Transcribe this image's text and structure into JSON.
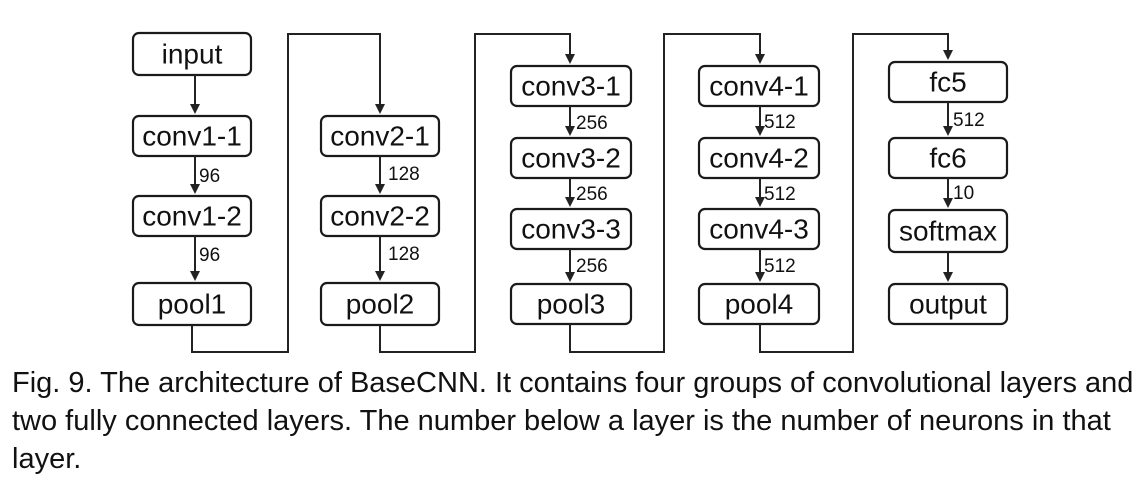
{
  "colors": {
    "io_fill": "#F29A4E",
    "box_fill": "#FFFFFF"
  },
  "nodes": {
    "input": "input",
    "conv1_1": "conv1-1",
    "conv1_2": "conv1-2",
    "pool1": "pool1",
    "conv2_1": "conv2-1",
    "conv2_2": "conv2-2",
    "pool2": "pool2",
    "conv3_1": "conv3-1",
    "conv3_2": "conv3-2",
    "conv3_3": "conv3-3",
    "pool3": "pool3",
    "conv4_1": "conv4-1",
    "conv4_2": "conv4-2",
    "conv4_3": "conv4-3",
    "pool4": "pool4",
    "fc5": "fc5",
    "fc6": "fc6",
    "softmax": "softmax",
    "output": "output"
  },
  "edge_labels": {
    "conv1_1_to_conv1_2": "96",
    "conv1_2_to_pool1": "96",
    "conv2_1_to_conv2_2": "128",
    "conv2_2_to_pool2": "128",
    "conv3_1_to_conv3_2": "256",
    "conv3_2_to_conv3_3": "256",
    "conv3_3_to_pool3": "256",
    "conv4_1_to_conv4_2": "512",
    "conv4_2_to_conv4_3": "512",
    "conv4_3_to_pool4": "512",
    "fc5_to_fc6": "512",
    "fc6_to_softmax": "10"
  },
  "caption": "Fig. 9. The architecture of BaseCNN. It contains four groups of convolutional layers and two fully connected layers. The number below a layer is the number of neurons in that layer."
}
